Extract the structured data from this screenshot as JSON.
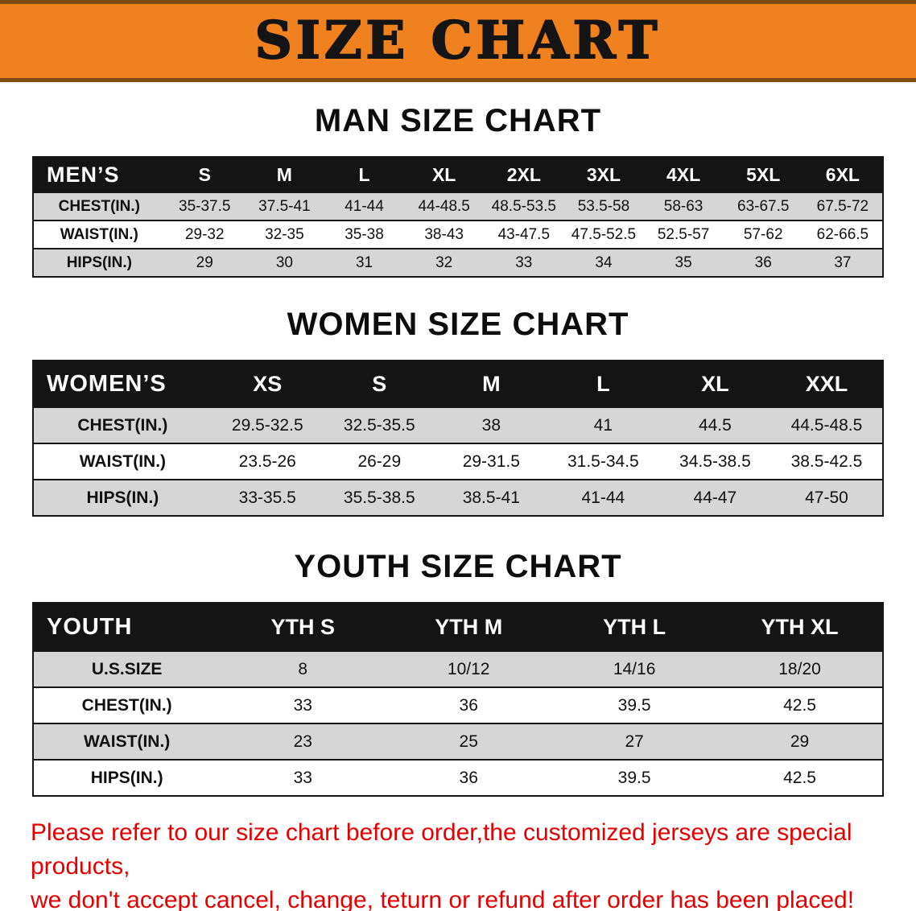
{
  "colors": {
    "banner_bg": "#f0811f",
    "banner_edge": "#7d4c10",
    "header_bg": "#141414",
    "row_shade": "#d6d6d6",
    "notice_text": "#e40000"
  },
  "banner": {
    "title": "SIZE CHART"
  },
  "men": {
    "heading": "MAN SIZE CHART",
    "label": "MEN’S",
    "sizes": [
      "S",
      "M",
      "L",
      "XL",
      "2XL",
      "3XL",
      "4XL",
      "5XL",
      "6XL"
    ],
    "rows": [
      {
        "label": "CHEST(IN.)",
        "values": [
          "35-37.5",
          "37.5-41",
          "41-44",
          "44-48.5",
          "48.5-53.5",
          "53.5-58",
          "58-63",
          "63-67.5",
          "67.5-72"
        ]
      },
      {
        "label": "WAIST(IN.)",
        "values": [
          "29-32",
          "32-35",
          "35-38",
          "38-43",
          "43-47.5",
          "47.5-52.5",
          "52.5-57",
          "57-62",
          "62-66.5"
        ]
      },
      {
        "label": "HIPS(IN.)",
        "values": [
          "29",
          "30",
          "31",
          "32",
          "33",
          "34",
          "35",
          "36",
          "37"
        ]
      }
    ]
  },
  "women": {
    "heading": "WOMEN SIZE CHART",
    "label": "WOMEN’S",
    "sizes": [
      "XS",
      "S",
      "M",
      "L",
      "XL",
      "XXL"
    ],
    "rows": [
      {
        "label": "CHEST(IN.)",
        "values": [
          "29.5-32.5",
          "32.5-35.5",
          "38",
          "41",
          "44.5",
          "44.5-48.5"
        ]
      },
      {
        "label": "WAIST(IN.)",
        "values": [
          "23.5-26",
          "26-29",
          "29-31.5",
          "31.5-34.5",
          "34.5-38.5",
          "38.5-42.5"
        ]
      },
      {
        "label": "HIPS(IN.)",
        "values": [
          "33-35.5",
          "35.5-38.5",
          "38.5-41",
          "41-44",
          "44-47",
          "47-50"
        ]
      }
    ]
  },
  "youth": {
    "heading": "YOUTH SIZE CHART",
    "label": "YOUTH",
    "sizes": [
      "YTH S",
      "YTH M",
      "YTH L",
      "YTH XL"
    ],
    "rows": [
      {
        "label": "U.S.SIZE",
        "values": [
          "8",
          "10/12",
          "14/16",
          "18/20"
        ]
      },
      {
        "label": "CHEST(IN.)",
        "values": [
          "33",
          "36",
          "39.5",
          "42.5"
        ]
      },
      {
        "label": "WAIST(IN.)",
        "values": [
          "23",
          "25",
          "27",
          "29"
        ]
      },
      {
        "label": "HIPS(IN.)",
        "values": [
          "33",
          "36",
          "39.5",
          "42.5"
        ]
      }
    ]
  },
  "notice": {
    "line1": "Please refer to our size chart before order,the customized jerseys are special products,",
    "line2": "we don't accept cancel, change, teturn or refund after order has been placed!"
  }
}
